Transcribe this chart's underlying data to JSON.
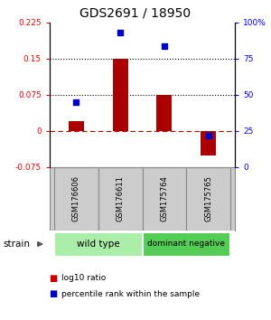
{
  "title": "GDS2691 / 18950",
  "samples": [
    "GSM176606",
    "GSM176611",
    "GSM175764",
    "GSM175765"
  ],
  "log10_ratio": [
    0.02,
    0.15,
    0.075,
    -0.05
  ],
  "percentile_rank": [
    0.45,
    0.93,
    0.84,
    0.22
  ],
  "ylim_left": [
    -0.075,
    0.225
  ],
  "ylim_right": [
    0.0,
    1.0
  ],
  "yticks_left": [
    -0.075,
    0.0,
    0.075,
    0.15,
    0.225
  ],
  "ytick_labels_left": [
    "-0.075",
    "0",
    "0.075",
    "0.15",
    "0.225"
  ],
  "yticks_right": [
    0.0,
    0.25,
    0.5,
    0.75,
    1.0
  ],
  "ytick_labels_right": [
    "0",
    "25",
    "50",
    "75",
    "100%"
  ],
  "hlines_dotted": [
    0.075,
    0.15
  ],
  "hline_zero": 0.0,
  "bar_color": "#aa0000",
  "scatter_color": "#0000cc",
  "bar_width": 0.35,
  "strain_groups": [
    {
      "label": "wild type",
      "indices": [
        0,
        1
      ],
      "color": "#aaeeaa"
    },
    {
      "label": "dominant negative",
      "indices": [
        2,
        3
      ],
      "color": "#55cc55"
    }
  ],
  "strain_label": "strain",
  "legend_items": [
    {
      "color": "#cc0000",
      "label": "log10 ratio"
    },
    {
      "color": "#0000cc",
      "label": "percentile rank within the sample"
    }
  ],
  "sample_bg_color": "#cccccc",
  "sample_border_color": "#888888"
}
